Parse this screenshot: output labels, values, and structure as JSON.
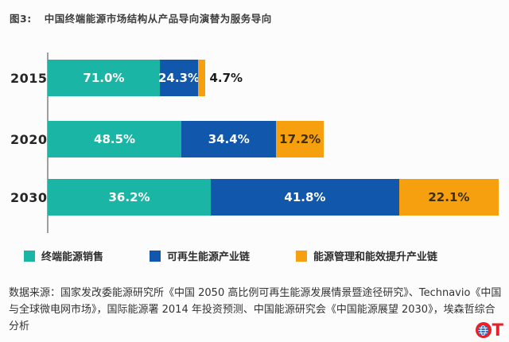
{
  "chart_data": {
    "type": "bar",
    "variant": "horizontal-stacked",
    "figure_label": "图3:",
    "title": "中国终端能源市场结构从产品导向演替为服务导向",
    "categories": [
      "2015",
      "2020",
      "2030"
    ],
    "series": [
      {
        "name": "终端能源销售",
        "color": "#1ab5a4",
        "values": [
          71.0,
          48.5,
          36.2
        ]
      },
      {
        "name": "可再生能源产业链",
        "color": "#1158ac",
        "values": [
          24.3,
          34.4,
          41.8
        ]
      },
      {
        "name": "能源管理和能效提升产业链",
        "color": "#f7a00f",
        "values": [
          4.7,
          17.2,
          22.1
        ]
      }
    ],
    "value_suffix": "%",
    "relative_bar_lengths": [
      0.35,
      0.612,
      1.0
    ],
    "label_layout": [
      [
        "in-white",
        "in-white",
        "out-dark"
      ],
      [
        "in-white",
        "in-white",
        "in-dark"
      ],
      [
        "in-white",
        "in-white",
        "in-dark"
      ]
    ],
    "legend_position": "bottom",
    "grid": false,
    "axis_line_color": "#9f9f9f"
  },
  "source": {
    "text": "数据来源：国家发改委能源研究所《中国 2050 高比例可再生能源发展情景暨途径研究》、Technavio《中国与全球微电网市场》，国际能源署 2014 年投资预测、中国能源研究会《中国能源展望 2030》，埃森哲综合分析"
  },
  "logo": {
    "text": "OT",
    "t": "T",
    "red": "#e62129",
    "globe_blue": "#2f6fc4"
  }
}
